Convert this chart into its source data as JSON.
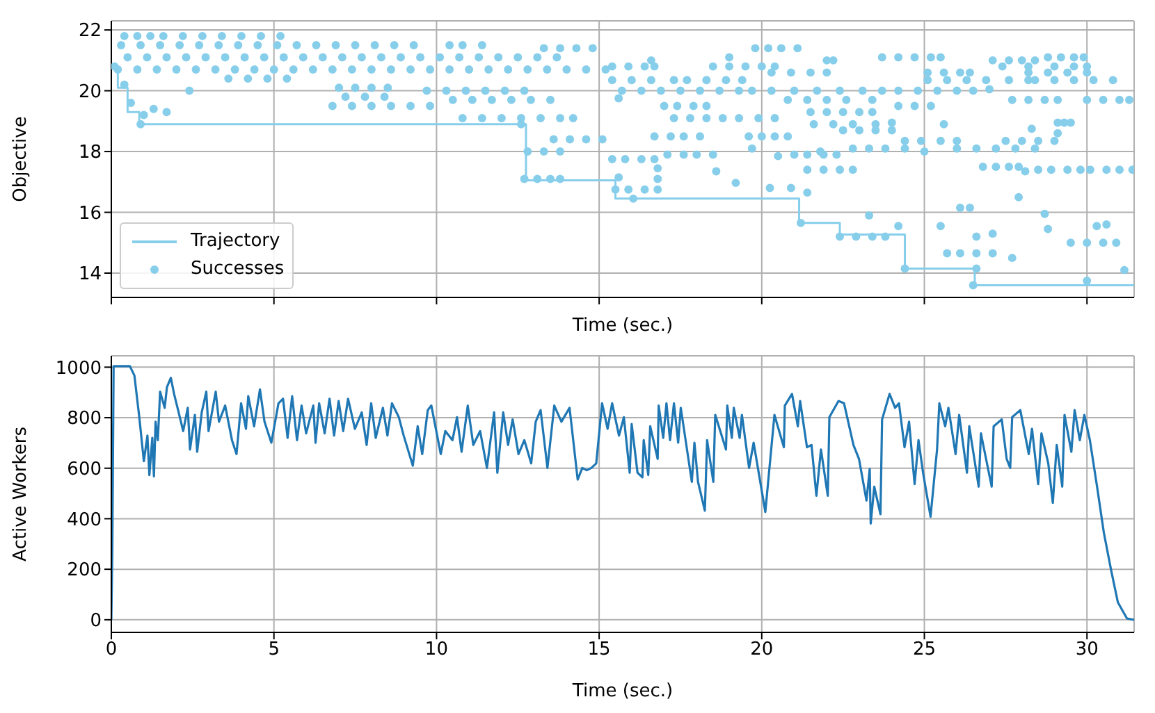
{
  "chart_data": [
    {
      "type": "scatter",
      "ylabel": "Objective",
      "xlabel": "Time (sec.)",
      "xlim": [
        0,
        31.45
      ],
      "xticks": [
        0,
        5,
        10,
        15,
        20,
        25,
        30
      ],
      "ylim": [
        13.2,
        22.3
      ],
      "yticks": [
        14,
        16,
        18,
        20,
        22
      ],
      "tick_labels": "y",
      "grid": true,
      "legend": "bottom left",
      "series": [
        {
          "name": "Trajectory",
          "type": "step",
          "marker": "none",
          "color": "#87ceeb",
          "x": [
            0.13,
            0.2,
            0.5,
            0.86,
            12.75,
            15.5,
            21.15,
            22.4,
            24.4,
            26.55,
            31.45
          ],
          "values": [
            20.7,
            20.1,
            19.3,
            18.9,
            17.05,
            16.45,
            15.65,
            15.27,
            14.15,
            13.6,
            13.6
          ]
        },
        {
          "name": "Successes",
          "marker": "circle",
          "color": "#87ceeb",
          "x": [
            0.4,
            0.8,
            1.2,
            1.6,
            2.2,
            2.8,
            3.4,
            4,
            4.6,
            5.2,
            0.3,
            0.9,
            1.5,
            2.1,
            2.7,
            3.3,
            3.9,
            4.5,
            5.1,
            5.7,
            6.3,
            6.9,
            7.5,
            8.1,
            8.7,
            9.3,
            10.4,
            10.8,
            11.4,
            0.5,
            1.1,
            1.7,
            2.3,
            2.9,
            3.5,
            4.1,
            4.7,
            5.3,
            5.9,
            6.5,
            7.1,
            7.7,
            8.3,
            8.9,
            9.5,
            10.1,
            10.7,
            11.3,
            11.9,
            12.5,
            13.1,
            13.7,
            13.3,
            13.8,
            14.3,
            14.8,
            0.2,
            0.8,
            1.4,
            2,
            2.6,
            3.2,
            3.8,
            4.4,
            5,
            5.6,
            6.2,
            6.8,
            7.4,
            8,
            8.6,
            9.2,
            9.8,
            10.4,
            11,
            11.6,
            12.2,
            12.8,
            13.4,
            14,
            14.6,
            15.2,
            3.6,
            4.2,
            4.8,
            5.4,
            7,
            7.5,
            8,
            8.5,
            7.2,
            7.8,
            8.4,
            6.8,
            7.4,
            8,
            8.6,
            9.2,
            9.8,
            9.7,
            10.3,
            10.9,
            11.5,
            12.1,
            12.7,
            10.5,
            11.1,
            11.7,
            12.3,
            12.9,
            13.5,
            10.8,
            11.4,
            12,
            12.6,
            13.2,
            13.8,
            14.2,
            0.1,
            0.4,
            0.6,
            1,
            1.3,
            0.9,
            1.7,
            2.4,
            12.6,
            13.6,
            14.1,
            14.6,
            15.1,
            12.8,
            13.3,
            13.8,
            12.7,
            13.1,
            13.5,
            13.8,
            19.8,
            20.2,
            20.6,
            21.1,
            23.7,
            24.2,
            24.7,
            25.2,
            28.8,
            29.2,
            29.6,
            29.9,
            27.1,
            27.6,
            28,
            28.4,
            15.4,
            15.9,
            16.4,
            16.7,
            18.5,
            19,
            19.5,
            20,
            20.4,
            27.4,
            28.2,
            29,
            29.6,
            30,
            20.3,
            20.9,
            21.5,
            22,
            25.1,
            25.6,
            26.1,
            26.4,
            28.2,
            28.8,
            29.4,
            30,
            15.4,
            16,
            16.6,
            17.3,
            17.7,
            18.3,
            18.9,
            19.4,
            25.1,
            25.7,
            26.3,
            26.9,
            27.6,
            28.4,
            29,
            29.6,
            30.2,
            30.8,
            15.7,
            16.3,
            16.9,
            17.5,
            18.1,
            18.7,
            19.3,
            19.7,
            20.3,
            21,
            21.7,
            22.4,
            23.1,
            23.7,
            24.2,
            24.8,
            25.4,
            26,
            26.5,
            27.7,
            28.2,
            28.7,
            29.1,
            30,
            30.5,
            31,
            31.3,
            20.8,
            21.4,
            22,
            22.6,
            23.4,
            17,
            17.4,
            17.9,
            18.3,
            24.2,
            24.7,
            25.2,
            21.5,
            22,
            22.5,
            23,
            23.4,
            17.3,
            17.8,
            18.3,
            18.8,
            19.3,
            19.9,
            20.4,
            21.6,
            22.2,
            22.8,
            23.5,
            22.5,
            23,
            23.5,
            24,
            16.7,
            17.2,
            17.6,
            18.1,
            19.6,
            20,
            20.4,
            20.8,
            24.4,
            24.9,
            25.5,
            26,
            27.5,
            28,
            28.5,
            29,
            22.8,
            23.3,
            23.8,
            24.4,
            26,
            26.6,
            27.2,
            27.8,
            28.4,
            17.1,
            17.6,
            18,
            18.5,
            21,
            21.4,
            21.9,
            22.3,
            15.4,
            15.8,
            16.3,
            16.7,
            26.8,
            27.2,
            27.6,
            27.9,
            21.4,
            21.9,
            22.4,
            22.8,
            28.5,
            28.9,
            29.4,
            29.8,
            30.1,
            30.6,
            31,
            31.4,
            15.5,
            15.9,
            16.4,
            16.8,
            22.4,
            22.9,
            23.4,
            23.8,
            29.5,
            30,
            30.5,
            30.9,
            25.7,
            26.1,
            26.6,
            27.1,
            15.6,
            16.8,
            16.8,
            16.05,
            18.6,
            19.2,
            20.25,
            20.9,
            21.4,
            21.2,
            23.3,
            24.2,
            25.5,
            26.1,
            26.4,
            26.6,
            27.1,
            27.7,
            24.4,
            26.6,
            26.5,
            27.9,
            28.7,
            28.8,
            30.3,
            30.6,
            30,
            31.15,
            29.1,
            29.3,
            29.5,
            29.1,
            28.3,
            28.1,
            25,
            19.7,
            20.5,
            21.8,
            27,
            28.2,
            22,
            22.2,
            19,
            25.5,
            16.6,
            15.6,
            24,
            25.6
          ],
          "values": [
            21.8,
            21.8,
            21.8,
            21.8,
            21.8,
            21.8,
            21.8,
            21.8,
            21.8,
            21.8,
            21.5,
            21.5,
            21.5,
            21.5,
            21.5,
            21.5,
            21.5,
            21.5,
            21.5,
            21.5,
            21.5,
            21.5,
            21.5,
            21.5,
            21.5,
            21.5,
            21.5,
            21.5,
            21.5,
            21.1,
            21.1,
            21.1,
            21.1,
            21.1,
            21.1,
            21.1,
            21.1,
            21.1,
            21.1,
            21.1,
            21.1,
            21.1,
            21.1,
            21.1,
            21.1,
            21.1,
            21.1,
            21.1,
            21.1,
            21.1,
            21.1,
            21.1,
            21.4,
            21.4,
            21.4,
            21.4,
            20.7,
            20.7,
            20.7,
            20.7,
            20.7,
            20.7,
            20.7,
            20.7,
            20.7,
            20.7,
            20.7,
            20.7,
            20.7,
            20.7,
            20.7,
            20.7,
            20.7,
            20.7,
            20.7,
            20.7,
            20.7,
            20.7,
            20.7,
            20.7,
            20.7,
            20.7,
            20.4,
            20.4,
            20.4,
            20.4,
            20.1,
            20.1,
            20.1,
            20.1,
            19.8,
            19.8,
            19.8,
            19.5,
            19.5,
            19.5,
            19.5,
            19.5,
            19.5,
            20,
            20,
            20,
            20,
            20,
            20,
            19.7,
            19.7,
            19.7,
            19.7,
            19.7,
            19.7,
            19.1,
            19.1,
            19.1,
            19.1,
            19.1,
            19.1,
            19.1,
            20.8,
            20.2,
            19.6,
            19.2,
            19.4,
            18.9,
            19.3,
            20,
            18.9,
            18.4,
            18.4,
            18.4,
            18.4,
            18,
            18,
            18,
            17.1,
            17.1,
            17.1,
            17.1,
            21.4,
            21.4,
            21.4,
            21.4,
            21.1,
            21.1,
            21.1,
            21.1,
            21.1,
            21.1,
            21.1,
            21.1,
            21,
            21,
            21,
            21,
            20.8,
            20.8,
            20.8,
            20.8,
            20.8,
            20.8,
            20.8,
            20.8,
            20.8,
            20.8,
            20.8,
            20.8,
            20.8,
            20.8,
            20.6,
            20.6,
            20.6,
            20.6,
            20.6,
            20.6,
            20.6,
            20.6,
            20.6,
            20.6,
            20.6,
            20.6,
            20.35,
            20.35,
            20.35,
            20.35,
            20.35,
            20.35,
            20.35,
            20.35,
            20.35,
            20.35,
            20.35,
            20.35,
            20.35,
            20.35,
            20.35,
            20.35,
            20.35,
            20.35,
            20,
            20,
            20,
            20,
            20,
            20,
            20,
            20,
            20,
            20,
            20,
            20,
            20,
            20,
            20,
            20,
            20,
            20,
            20,
            19.7,
            19.7,
            19.7,
            19.7,
            19.7,
            19.7,
            19.7,
            19.7,
            19.7,
            19.7,
            19.7,
            19.7,
            19.7,
            19.5,
            19.5,
            19.5,
            19.5,
            19.5,
            19.5,
            19.5,
            19.3,
            19.3,
            19.3,
            19.3,
            19.3,
            19.1,
            19.1,
            19.1,
            19.1,
            19.1,
            19.1,
            19.1,
            18.9,
            18.9,
            18.9,
            18.9,
            18.7,
            18.7,
            18.7,
            18.7,
            18.5,
            18.5,
            18.5,
            18.5,
            18.5,
            18.5,
            18.5,
            18.5,
            18.35,
            18.35,
            18.35,
            18.35,
            18.35,
            18.35,
            18.35,
            18.35,
            18.1,
            18.1,
            18.1,
            18.1,
            18.1,
            18.1,
            18.1,
            18.1,
            18.1,
            17.9,
            17.9,
            17.9,
            17.9,
            17.9,
            17.9,
            17.9,
            17.9,
            17.75,
            17.75,
            17.75,
            17.75,
            17.5,
            17.5,
            17.5,
            17.5,
            17.4,
            17.4,
            17.4,
            17.4,
            17.4,
            17.4,
            17.4,
            17.4,
            17.4,
            17.4,
            17.4,
            17.4,
            16.75,
            16.75,
            16.75,
            16.75,
            15.2,
            15.2,
            15.2,
            15.2,
            15,
            15,
            15,
            15,
            14.65,
            14.65,
            14.65,
            14.65,
            17.15,
            17.45,
            17.1,
            16.45,
            17.35,
            16.97,
            16.8,
            16.8,
            16.65,
            15.65,
            15.9,
            15.55,
            15.55,
            16.15,
            16.15,
            15.2,
            15.3,
            14.5,
            14.15,
            14.15,
            13.6,
            16.5,
            15.95,
            15.45,
            15.55,
            15.6,
            13.75,
            14.1,
            18.95,
            18.95,
            18.95,
            18.6,
            18.75,
            17.35,
            18,
            18.1,
            17.85,
            18,
            20.05,
            20.35,
            21,
            21,
            21.1,
            21.1,
            21,
            19.75,
            18.95,
            18.9
          ]
        }
      ]
    },
    {
      "type": "line",
      "ylabel": "Active Workers",
      "xlabel": "Time (sec.)",
      "xlim": [
        0,
        31.45
      ],
      "xticks": [
        0,
        5,
        10,
        15,
        20,
        25,
        30
      ],
      "ylim": [
        -50,
        1045
      ],
      "yticks": [
        0,
        200,
        400,
        600,
        800,
        1000
      ],
      "grid": true,
      "marker": "none",
      "series": [
        {
          "color": "#1f77b4",
          "x": [
            0,
            0.03,
            0.07,
            0.57,
            0.71,
            0.86,
            1,
            1.11,
            1.17,
            1.26,
            1.31,
            1.36,
            1.43,
            1.5,
            1.64,
            1.71,
            1.83,
            1.93,
            2.07,
            2.21,
            2.35,
            2.42,
            2.57,
            2.64,
            2.78,
            2.92,
            2.99,
            3.21,
            3.31,
            3.5,
            3.71,
            3.85,
            3.99,
            4.14,
            4.21,
            4.39,
            4.57,
            4.71,
            4.92,
            5.14,
            5.28,
            5.42,
            5.56,
            5.71,
            5.85,
            5.99,
            6.21,
            6.28,
            6.39,
            6.56,
            6.71,
            6.85,
            6.99,
            7.13,
            7.28,
            7.49,
            7.7,
            7.85,
            7.99,
            8.13,
            8.35,
            8.49,
            8.63,
            8.84,
            8.99,
            9.27,
            9.42,
            9.56,
            9.73,
            9.84,
            10.13,
            10.27,
            10.49,
            10.63,
            10.77,
            10.96,
            11.13,
            11.34,
            11.55,
            11.77,
            11.87,
            12.05,
            12.2,
            12.34,
            12.52,
            12.7,
            12.91,
            13.05,
            13.2,
            13.41,
            13.62,
            13.84,
            14.09,
            14.34,
            14.48,
            14.62,
            14.76,
            14.91,
            15.09,
            15.26,
            15.4,
            15.61,
            15.76,
            15.94,
            16,
            16.18,
            16.33,
            16.37,
            16.51,
            16.57,
            16.8,
            16.83,
            16.97,
            17.07,
            17.18,
            17.3,
            17.43,
            17.51,
            17.85,
            17.93,
            18.04,
            18.25,
            18.32,
            18.51,
            18.57,
            18.9,
            18.94,
            19.08,
            19.14,
            19.32,
            19.39,
            19.61,
            19.75,
            20.11,
            20.39,
            20.68,
            20.71,
            20.93,
            21.11,
            21.18,
            21.39,
            21.53,
            21.68,
            21.82,
            22.03,
            22.08,
            22.36,
            22.53,
            22.82,
            22.99,
            23.22,
            23.32,
            23.35,
            23.46,
            23.65,
            23.7,
            23.93,
            24.1,
            24.22,
            24.39,
            24.53,
            24.7,
            24.82,
            24.96,
            25.19,
            25.39,
            25.46,
            25.64,
            25.74,
            25.96,
            26.07,
            26.31,
            26.38,
            26.67,
            26.74,
            26.81,
            27.07,
            27.13,
            27.38,
            27.53,
            27.64,
            27.7,
            27.95,
            28.21,
            28.31,
            28.5,
            28.6,
            28.81,
            28.95,
            29.07,
            29.24,
            29.31,
            29.52,
            29.62,
            29.78,
            29.92,
            30.09,
            30.31,
            30.52,
            30.74,
            30.95,
            31.23,
            31.45
          ],
          "values": [
            0,
            271,
            1004,
            1004,
            967,
            802,
            628,
            729,
            573,
            720,
            568,
            784,
            711,
            903,
            839,
            921,
            958,
            894,
            821,
            747,
            839,
            674,
            811,
            665,
            821,
            903,
            747,
            903,
            784,
            848,
            711,
            656,
            857,
            756,
            885,
            766,
            912,
            784,
            701,
            857,
            875,
            720,
            885,
            711,
            848,
            738,
            848,
            701,
            857,
            738,
            875,
            729,
            866,
            747,
            875,
            756,
            821,
            692,
            857,
            720,
            839,
            729,
            857,
            802,
            729,
            610,
            766,
            656,
            830,
            848,
            656,
            747,
            711,
            802,
            665,
            848,
            692,
            747,
            601,
            821,
            582,
            821,
            692,
            793,
            656,
            711,
            619,
            784,
            830,
            601,
            848,
            784,
            839,
            555,
            601,
            592,
            601,
            619,
            857,
            756,
            857,
            729,
            802,
            582,
            775,
            582,
            564,
            711,
            573,
            766,
            637,
            848,
            720,
            857,
            711,
            857,
            701,
            839,
            546,
            701,
            546,
            432,
            711,
            546,
            811,
            674,
            848,
            720,
            839,
            720,
            811,
            601,
            701,
            427,
            811,
            683,
            848,
            894,
            766,
            866,
            683,
            692,
            491,
            674,
            491,
            802,
            866,
            857,
            692,
            637,
            472,
            597,
            381,
            527,
            418,
            793,
            894,
            839,
            857,
            683,
            784,
            537,
            711,
            582,
            408,
            674,
            857,
            766,
            839,
            656,
            811,
            582,
            766,
            527,
            738,
            692,
            527,
            766,
            793,
            637,
            601,
            802,
            830,
            656,
            756,
            537,
            738,
            619,
            463,
            692,
            527,
            811,
            665,
            830,
            711,
            811,
            711,
            527,
            344,
            198,
            69,
            5,
            0
          ]
        }
      ]
    }
  ]
}
